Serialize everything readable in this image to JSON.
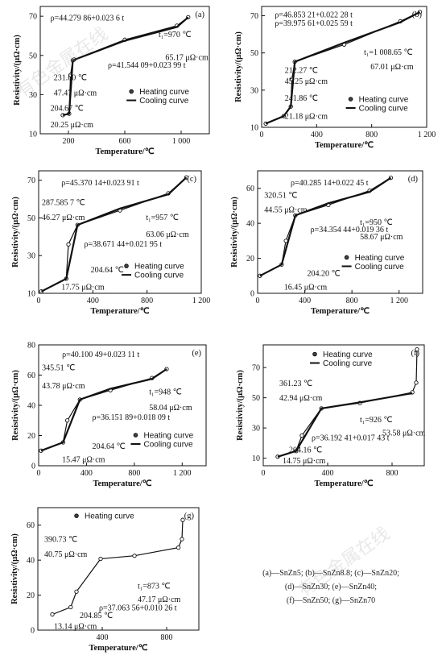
{
  "watermark": {
    "text": "有色金属在线",
    "site": "www.cnn.com.cn"
  },
  "colors": {
    "axis": "#111111",
    "curve": "#111111",
    "background": "#ffffff"
  },
  "chart_data": [
    {
      "panel": "(a)",
      "type": "line",
      "ylabel": "Resistivity/(μΩ·cm)",
      "xlabel": "Temperature/℃",
      "xlim": [
        0,
        1200
      ],
      "ylim": [
        10,
        75
      ],
      "xticks": [
        "200",
        "600",
        "1 000"
      ],
      "yticks": [
        "10",
        "30",
        "50",
        "70"
      ],
      "series": [
        {
          "name": "Heating curve",
          "x": [
            160,
            205,
            215,
            231,
            240,
            600,
            970,
            1050
          ],
          "y": [
            19.5,
            20.25,
            40,
            47.47,
            47.9,
            58.0,
            65.17,
            69.5
          ]
        },
        {
          "name": "Cooling curve",
          "x": [
            160,
            205,
            231,
            600,
            970,
            1050
          ],
          "y": [
            19.5,
            20.25,
            47.47,
            57.5,
            64.5,
            69.5
          ]
        }
      ],
      "annotations": [
        "ρ=44.279 86+0.023 6 t",
        "t₁=970 ℃",
        "65.17 μΩ·cm",
        "ρ=41.544 09+0.023 99 t",
        "231.60 ℃",
        "47.47 μΩ·cm",
        "204.67 ℃",
        "20.25 μΩ·cm"
      ],
      "legend": [
        "Heating curve",
        "Cooling curve"
      ]
    },
    {
      "panel": "(b)",
      "type": "line",
      "ylabel": "Resistivity/(μΩ·cm)",
      "xlabel": "Temperature/℃",
      "xlim": [
        0,
        1200
      ],
      "ylim": [
        10,
        75
      ],
      "xticks": [
        "0",
        "400",
        "800",
        "1 200"
      ],
      "yticks": [
        "10",
        "30",
        "50",
        "70"
      ],
      "series": [
        {
          "name": "Heating curve",
          "x": [
            30,
            160,
            212,
            220,
            241,
            600,
            1008,
            1150
          ],
          "y": [
            12,
            16,
            21.18,
            36,
            45.25,
            54.5,
            67.01,
            72
          ]
        },
        {
          "name": "Cooling curve",
          "x": [
            30,
            160,
            212,
            241,
            600,
            1008,
            1150
          ],
          "y": [
            12,
            16,
            21.18,
            45.25,
            55.5,
            66.5,
            72
          ]
        }
      ],
      "annotations": [
        "ρ=46.853 21+0.022 28 t",
        "ρ=39.975 61+0.025 59 t",
        "212.27 ℃",
        "45.25 μΩ·cm",
        "t₁=1 008.65 ℃",
        "67.01 μΩ·cm",
        "241.86 ℃",
        "21.18 μΩ·cm"
      ],
      "legend": [
        "Heating curve",
        "Cooling curve"
      ]
    },
    {
      "panel": "(c)",
      "type": "line",
      "ylabel": "Resistivity/(μΩ·cm)",
      "xlabel": "Temperature/℃",
      "xlim": [
        0,
        1200
      ],
      "ylim": [
        10,
        75
      ],
      "xticks": [
        "0",
        "400",
        "800",
        "1 200"
      ],
      "yticks": [
        "10",
        "30",
        "50",
        "70"
      ],
      "series": [
        {
          "name": "Heating curve",
          "x": [
            20,
            204,
            220,
            287,
            600,
            957,
            1090
          ],
          "y": [
            11,
            17.75,
            36,
            46.27,
            54,
            63.06,
            71.5
          ]
        },
        {
          "name": "Cooling curve",
          "x": [
            20,
            204,
            287,
            600,
            957,
            1090
          ],
          "y": [
            11,
            17.75,
            46.27,
            55,
            62.5,
            71.5
          ]
        }
      ],
      "annotations": [
        "ρ=45.370 14+0.023 91 t",
        "287.585 7 ℃",
        "46.27 μΩ·cm",
        "t₁=957 ℃",
        "63.06 μΩ·cm",
        "ρ=38.671 44+0.021 95 t",
        "204.64 ℃",
        "17.75 μΩ·cm"
      ],
      "legend": [
        "Heating curve",
        "Cooling curve"
      ]
    },
    {
      "panel": "(d)",
      "type": "line",
      "ylabel": "Resistivity/(μΩ·cm)",
      "xlabel": "Temperature/℃",
      "xlim": [
        0,
        1400
      ],
      "ylim": [
        0,
        70
      ],
      "xticks": [
        "0",
        "400",
        "800",
        "1 200"
      ],
      "yticks": [
        "0",
        "20",
        "40",
        "60"
      ],
      "series": [
        {
          "name": "Heating curve",
          "x": [
            20,
            204,
            240,
            320,
            600,
            950,
            1130
          ],
          "y": [
            10,
            16.45,
            30,
            44.55,
            50.5,
            58.67,
            66
          ]
        },
        {
          "name": "Cooling curve",
          "x": [
            20,
            204,
            320,
            600,
            950,
            1130
          ],
          "y": [
            10,
            16.45,
            44.55,
            51.5,
            58.0,
            66
          ]
        }
      ],
      "annotations": [
        "ρ=40.285 14+0.022 45 t",
        "320.51 ℃",
        "44.55 μΩ·cm",
        "t₁=950 ℃",
        "58.67 μΩ·cm",
        "ρ=34.354 44+0.019 36 t",
        "204.20 ℃",
        "16.45 μΩ·cm"
      ],
      "legend": [
        "Heating curve",
        "Cooling curve"
      ]
    },
    {
      "panel": "(e)",
      "type": "line",
      "ylabel": "Resistivity/(μΩ·cm)",
      "xlabel": "Temperature/℃",
      "xlim": [
        0,
        1400
      ],
      "ylim": [
        0,
        80
      ],
      "xticks": [
        "0",
        "400",
        "800",
        "1 200"
      ],
      "yticks": [
        "0",
        "20",
        "40",
        "60",
        "80"
      ],
      "series": [
        {
          "name": "Heating curve",
          "x": [
            20,
            204,
            240,
            345,
            600,
            948,
            1070
          ],
          "y": [
            10,
            15.47,
            30,
            43.78,
            50,
            58.04,
            64
          ]
        },
        {
          "name": "Cooling curve",
          "x": [
            20,
            204,
            345,
            600,
            948,
            1070
          ],
          "y": [
            10,
            15.47,
            43.78,
            51,
            57.5,
            64
          ]
        }
      ],
      "annotations": [
        "ρ=40.100 49+0.023 11 t",
        "345.51 ℃",
        "43.78 μΩ·cm",
        "t₁=948 ℃",
        "58.04 μΩ·cm",
        "ρ=36.151 89+0.018 09 t",
        "204.64 ℃",
        "15.47 μΩ·cm"
      ],
      "legend": [
        "Heating curve",
        "Cooling curve"
      ]
    },
    {
      "panel": "(f)",
      "type": "line",
      "ylabel": "Resistivity/(μΩ·cm)",
      "xlabel": "Temperature/℃",
      "xlim": [
        0,
        1000
      ],
      "ylim": [
        5,
        85
      ],
      "xticks": [
        "0",
        "400",
        "800"
      ],
      "yticks": [
        "10",
        "30",
        "50",
        "70"
      ],
      "series": [
        {
          "name": "Heating curve",
          "x": [
            90,
            204,
            240,
            361,
            600,
            926,
            950,
            955
          ],
          "y": [
            11,
            14.75,
            25,
            42.94,
            46.5,
            53.58,
            60,
            82
          ]
        },
        {
          "name": "Cooling curve",
          "x": [
            90,
            204,
            361,
            600,
            926
          ],
          "y": [
            11,
            14.75,
            42.94,
            47,
            53
          ]
        }
      ],
      "annotations": [
        "361.23 ℃",
        "42.94 μΩ·cm",
        "t₁=926 ℃",
        "53.58 μΩ·cm",
        "ρ=36.192 41+0.017 43 t",
        "204.16 ℃",
        "14.75 μΩ·cm"
      ],
      "legend": [
        "Heating curve",
        "Cooling curve"
      ]
    },
    {
      "panel": "(g)",
      "type": "line",
      "ylabel": "Resistivity/(μΩ·cm)",
      "xlabel": "Temperature/℃",
      "xlim": [
        0,
        1000
      ],
      "ylim": [
        0,
        70
      ],
      "xticks": [
        "400",
        "800"
      ],
      "yticks": [
        "0",
        "20",
        "40",
        "60"
      ],
      "series": [
        {
          "name": "Heating curve",
          "x": [
            90,
            204,
            240,
            390,
            600,
            873,
            895,
            900
          ],
          "y": [
            9,
            13.14,
            22,
            40.75,
            42.5,
            47.17,
            52,
            63
          ]
        }
      ],
      "annotations": [
        "390.73 ℃",
        "40.75 μΩ·cm",
        "t₁=873 ℃",
        "47.17 μΩ·cm",
        "ρ=37.063 56+0.010 26 t",
        "204.85 ℃",
        "13.14 μΩ·cm"
      ],
      "legend": [
        "Heating curve"
      ]
    }
  ],
  "caption": {
    "lines": [
      "(a)—SnZn5; (b)—SnZn8.8; (c)—SnZn20;",
      "(d)—SnZn30; (e)—SnZn40;",
      "(f)—SnZn50; (g)—SnZn70"
    ]
  }
}
